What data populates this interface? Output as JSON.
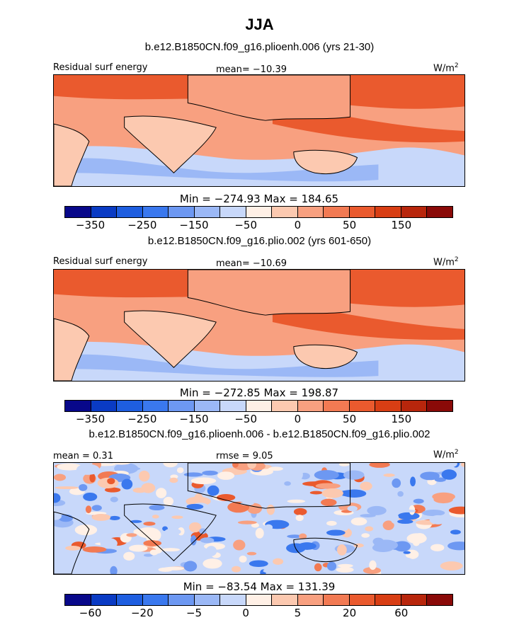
{
  "title": "JJA",
  "panels": [
    {
      "subtitle": "b.e12.B1850CN.f09_g16.plioenh.006 (yrs 21-30)",
      "left_label": "Residual surf energy",
      "center_label": "mean= −10.39",
      "unit": "W/m",
      "unit_sup": "2",
      "stats": "Min = −274.93 Max = 184.65",
      "colors": [
        "#08088a",
        "#0a3bc4",
        "#1e5ee0",
        "#3a78ee",
        "#6d98f2",
        "#9bb8f6",
        "#c8d8fa",
        "#fff0e6",
        "#fcc9b0",
        "#f8a080",
        "#f27a53",
        "#ea5a2e",
        "#d83e14",
        "#b8260c",
        "#8a0a08"
      ],
      "ticks": [
        "−350",
        "−250",
        "−150",
        "−50",
        "0",
        "50",
        "150"
      ],
      "map_variant": "enh"
    },
    {
      "subtitle": "b.e12.B1850CN.f09_g16.plio.002 (yrs 601-650)",
      "left_label": "Residual surf energy",
      "center_label": "mean= −10.69",
      "unit": "W/m",
      "unit_sup": "2",
      "stats": "Min = −272.85 Max = 198.87",
      "colors": [
        "#08088a",
        "#0a3bc4",
        "#1e5ee0",
        "#3a78ee",
        "#6d98f2",
        "#9bb8f6",
        "#c8d8fa",
        "#fff0e6",
        "#fcc9b0",
        "#f8a080",
        "#f27a53",
        "#ea5a2e",
        "#d83e14",
        "#b8260c",
        "#8a0a08"
      ],
      "ticks": [
        "−350",
        "−250",
        "−150",
        "−50",
        "0",
        "50",
        "150"
      ],
      "map_variant": "plio"
    },
    {
      "subtitle": "b.e12.B1850CN.f09_g16.plioenh.006 - b.e12.B1850CN.f09_g16.plio.002",
      "left_label": "mean =    0.31",
      "center_label": "rmse =    9.05",
      "unit": "W/m",
      "unit_sup": "2",
      "stats": "Min = −83.54 Max = 131.39",
      "colors": [
        "#08088a",
        "#0a3bc4",
        "#1e5ee0",
        "#3a78ee",
        "#6d98f2",
        "#9bb8f6",
        "#c8d8fa",
        "#fff0e6",
        "#fcc9b0",
        "#f8a080",
        "#f27a53",
        "#ea5a2e",
        "#d83e14",
        "#b8260c",
        "#8a0a08"
      ],
      "ticks": [
        "−60",
        "−20",
        "−5",
        "0",
        "5",
        "20",
        "60"
      ],
      "map_variant": "diff"
    }
  ]
}
